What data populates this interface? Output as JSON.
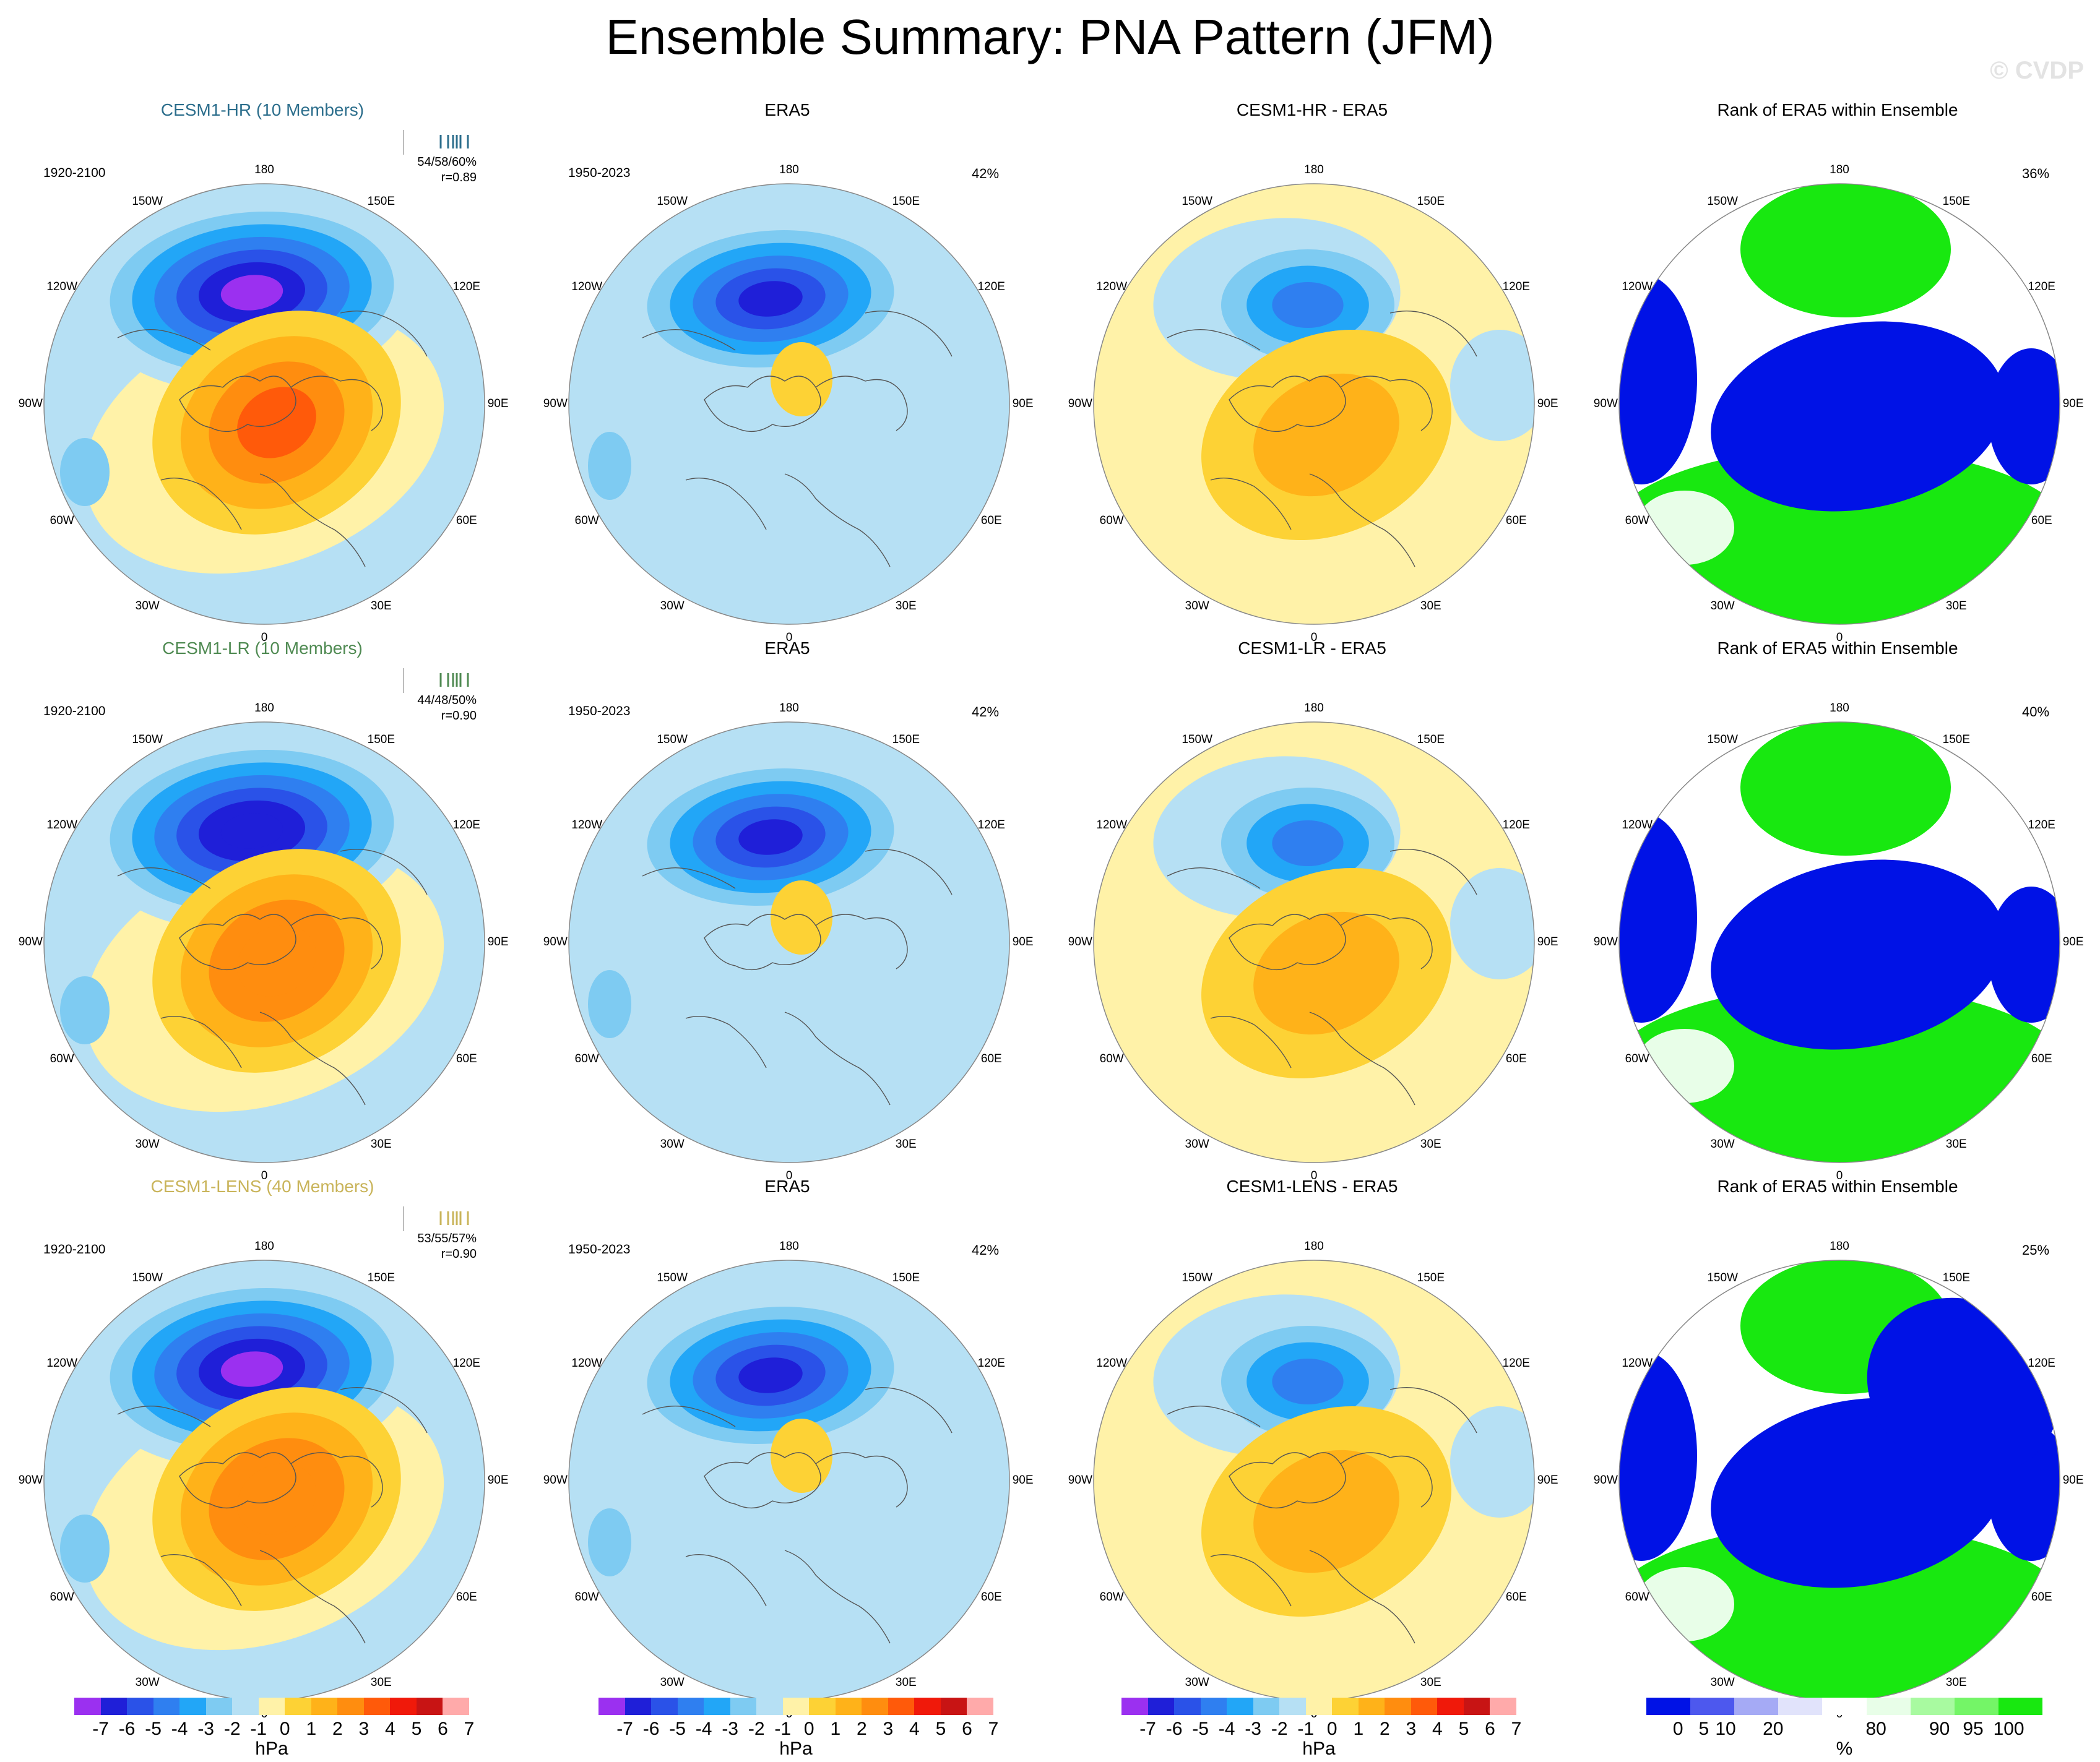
{
  "title": "Ensemble Summary: PNA Pattern (JFM)",
  "watermark": "© CVDP",
  "longitude_labels": [
    "180",
    "150E",
    "120E",
    "90E",
    "60E",
    "30E",
    "0",
    "30W",
    "60W",
    "90W",
    "120W",
    "150W"
  ],
  "colors": {
    "land_line": "#555555",
    "rim": "#888888",
    "fill_levels": [
      "#9b30f0",
      "#1f1fd8",
      "#2a52e8",
      "#2f7ff0",
      "#22a6f7",
      "#7ecbf2",
      "#b6e0f4",
      "#fff2a8",
      "#fdd235",
      "#ffb219",
      "#ff8d0f",
      "#ff5a0a",
      "#f0190a",
      "#c81414",
      "#ffaaaa"
    ],
    "rank_levels": [
      "#0012e6",
      "#4d58ee",
      "#a5aaf5",
      "#e1e3fb",
      "#ffffff",
      "#e8fee8",
      "#a8faa0",
      "#74f567",
      "#18e810"
    ]
  },
  "rows": [
    {
      "model": {
        "label": "CESM1-HR (10 Members)",
        "color": "#2c6e8c",
        "period": "1920-2100",
        "stats": "54/58/60%",
        "r": "r=0.89"
      },
      "obs": {
        "label": "ERA5",
        "period": "1950-2023",
        "pct": "42%"
      },
      "diff": {
        "label": "CESM1-HR - ERA5"
      },
      "rank": {
        "label": "Rank of ERA5 within Ensemble",
        "pct": "36%"
      }
    },
    {
      "model": {
        "label": "CESM1-LR (10 Members)",
        "color": "#4f8a52",
        "period": "1920-2100",
        "stats": "44/48/50%",
        "r": "r=0.90"
      },
      "obs": {
        "label": "ERA5",
        "period": "1950-2023",
        "pct": "42%"
      },
      "diff": {
        "label": "CESM1-LR - ERA5"
      },
      "rank": {
        "label": "Rank of ERA5 within Ensemble",
        "pct": "40%"
      }
    },
    {
      "model": {
        "label": "CESM1-LENS (40 Members)",
        "color": "#c9b45a",
        "period": "1920-2100",
        "stats": "53/55/57%",
        "r": "r=0.90"
      },
      "obs": {
        "label": "ERA5",
        "period": "1950-2023",
        "pct": "42%"
      },
      "diff": {
        "label": "CESM1-LENS - ERA5"
      },
      "rank": {
        "label": "Rank of ERA5 within Ensemble",
        "pct": "25%"
      }
    }
  ],
  "colorbar_hpa": {
    "ticks": [
      "-7",
      "-6",
      "-5",
      "-4",
      "-3",
      "-2",
      "-1",
      "0",
      "1",
      "2",
      "3",
      "4",
      "5",
      "6",
      "7"
    ],
    "unit": "hPa"
  },
  "colorbar_rank": {
    "ticks": [
      "0",
      "5",
      "10",
      "20",
      "80",
      "90",
      "95",
      "100"
    ],
    "unit": "%"
  }
}
